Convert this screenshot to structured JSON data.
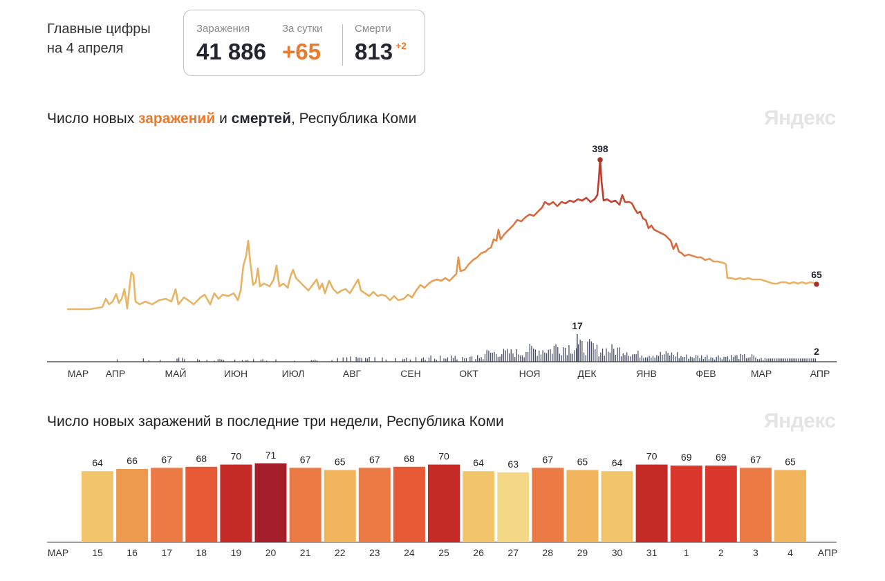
{
  "header": {
    "title_line1": "Главные цифры",
    "title_line2": "на 4 апреля"
  },
  "stats": {
    "infections_label": "Заражения",
    "infections_value": "41 886",
    "daily_label": "За сутки",
    "daily_value": "+65",
    "deaths_label": "Смерти",
    "deaths_value": "813",
    "deaths_delta": "+2"
  },
  "brand": "Яндекс",
  "chart1": {
    "title_prefix": "Число новых ",
    "title_infections": "заражений",
    "title_and": " и ",
    "title_deaths": "смертей",
    "title_suffix": ", Республика Коми"
  },
  "chart2": {
    "title": "Число новых заражений в последние три недели, Республика Коми"
  },
  "colors": {
    "infection_low": "#e8b86a",
    "infection_high": "#c0392b",
    "deaths_bar": "#4a4f6a",
    "peak_dot": "#a8322a",
    "weekend_label": "#d0382c"
  },
  "chart_data": [
    {
      "type": "line",
      "name": "daily-infections",
      "x_labels": [
        "МАР",
        "АПР",
        "МАЙ",
        "ИЮН",
        "ИЮЛ",
        "АВГ",
        "СЕН",
        "ОКТ",
        "НОЯ",
        "ДЕК",
        "ЯНВ",
        "ФЕВ",
        "МАР",
        "АПР"
      ],
      "y_approx_by_month": [
        {
          "month": "МАР",
          "value": 0
        },
        {
          "month": "АПР",
          "value": 5
        },
        {
          "month": "МАЙ",
          "value": 25
        },
        {
          "month": "ИЮН",
          "value": 60
        },
        {
          "month": "ИЮЛ",
          "value": 75
        },
        {
          "month": "АВГ",
          "value": 60
        },
        {
          "month": "СЕН",
          "value": 45
        },
        {
          "month": "ОКТ",
          "value": 110
        },
        {
          "month": "НОЯ",
          "value": 230
        },
        {
          "month": "ДЕК",
          "value": 300
        },
        {
          "month": "ЯНВ",
          "value": 200
        },
        {
          "month": "ФЕВ",
          "value": 125
        },
        {
          "month": "МАР",
          "value": 70
        },
        {
          "month": "АПР",
          "value": 65
        }
      ],
      "peak_value": "398",
      "last_value": "65"
    },
    {
      "type": "bar",
      "name": "daily-deaths",
      "peak_value": "17",
      "last_value": "2"
    },
    {
      "type": "bar",
      "name": "last-three-weeks",
      "first_month_label": "МАР",
      "last_month_label": "АПР",
      "categories": [
        "15",
        "16",
        "17",
        "18",
        "19",
        "20",
        "21",
        "22",
        "23",
        "24",
        "25",
        "26",
        "27",
        "28",
        "29",
        "30",
        "31",
        "1",
        "2",
        "3",
        "4"
      ],
      "values": [
        64,
        66,
        67,
        68,
        70,
        71,
        67,
        65,
        67,
        68,
        70,
        64,
        63,
        67,
        65,
        64,
        70,
        69,
        69,
        67,
        65
      ],
      "weekend_indices": [
        5,
        6,
        12,
        13,
        19,
        20
      ]
    }
  ]
}
